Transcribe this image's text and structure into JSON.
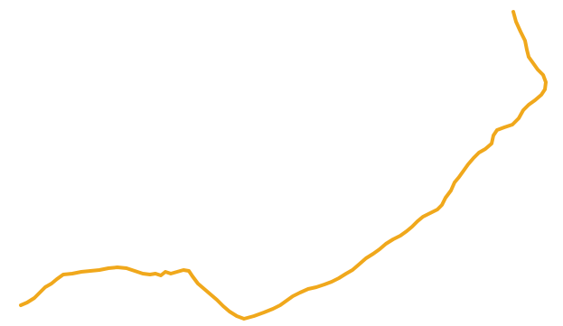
{
  "stroke": {
    "color": "#F0A81C",
    "shape": "freehand-curve"
  }
}
